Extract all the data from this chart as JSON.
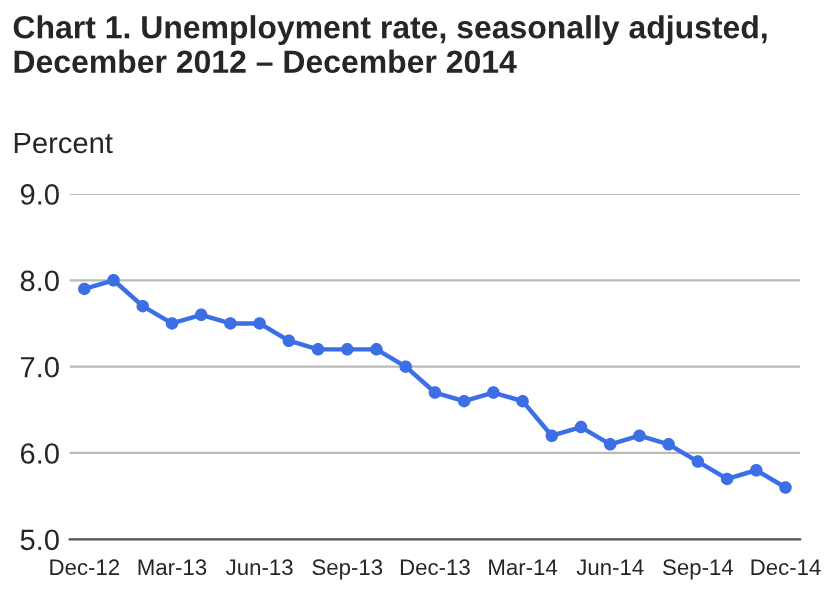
{
  "chart_data": {
    "type": "line",
    "title": "Chart 1. Unemployment rate, seasonally adjusted,\nDecember 2012 – December 2014",
    "ylabel": "Percent",
    "categories": [
      "Dec-12",
      null,
      null,
      "Mar-13",
      null,
      null,
      "Jun-13",
      null,
      null,
      "Sep-13",
      null,
      null,
      "Dec-13",
      null,
      null,
      "Mar-14",
      null,
      null,
      "Jun-14",
      null,
      null,
      "Sep-14",
      null,
      null,
      "Dec-14"
    ],
    "series": [
      {
        "color": "#3c6ee6",
        "values": [
          7.9,
          8.0,
          7.7,
          7.5,
          7.6,
          7.5,
          7.5,
          7.3,
          7.2,
          7.2,
          7.2,
          7.0,
          6.7,
          6.6,
          6.7,
          6.6,
          6.2,
          6.3,
          6.1,
          6.2,
          6.1,
          5.9,
          5.7,
          5.8,
          5.6
        ]
      }
    ],
    "ylim": [
      5.0,
      9.0
    ],
    "yticks": [
      {
        "value": 5.0,
        "label": "5.0"
      },
      {
        "value": 6.0,
        "label": "6.0"
      },
      {
        "value": 7.0,
        "label": "7.0"
      },
      {
        "value": 8.0,
        "label": "8.0"
      },
      {
        "value": 9.0,
        "label": "9.0"
      }
    ],
    "grid": "y",
    "marker": "circle",
    "line_style": "solid",
    "legend": false
  }
}
